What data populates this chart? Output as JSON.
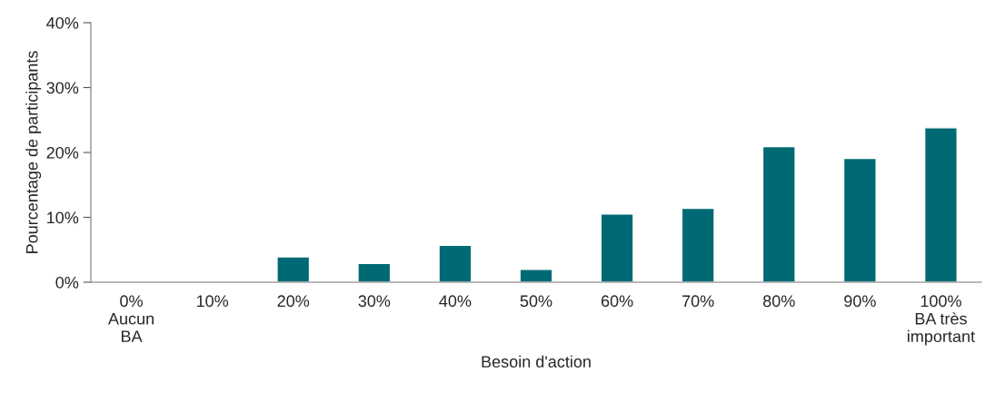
{
  "chart_data": {
    "type": "bar",
    "xlabel": "Besoin d'action",
    "ylabel": "Pourcentage de participants",
    "categories": [
      "0%\nAucun\nBA",
      "10%",
      "20%",
      "30%",
      "40%",
      "50%",
      "60%",
      "70%",
      "80%",
      "90%",
      "100%\nBA très\nimportant"
    ],
    "values": [
      null,
      null,
      3.9,
      2.9,
      5.7,
      2.0,
      10.5,
      11.4,
      20.9,
      19.1,
      23.8
    ],
    "color": "#006a74",
    "ylim": [
      0,
      40
    ],
    "yticks": [
      {
        "value": 0,
        "label": "0%"
      },
      {
        "value": 10,
        "label": "10%"
      },
      {
        "value": 20,
        "label": "20%"
      },
      {
        "value": 30,
        "label": "30%"
      },
      {
        "value": 40,
        "label": "40%"
      }
    ],
    "grid": false
  }
}
